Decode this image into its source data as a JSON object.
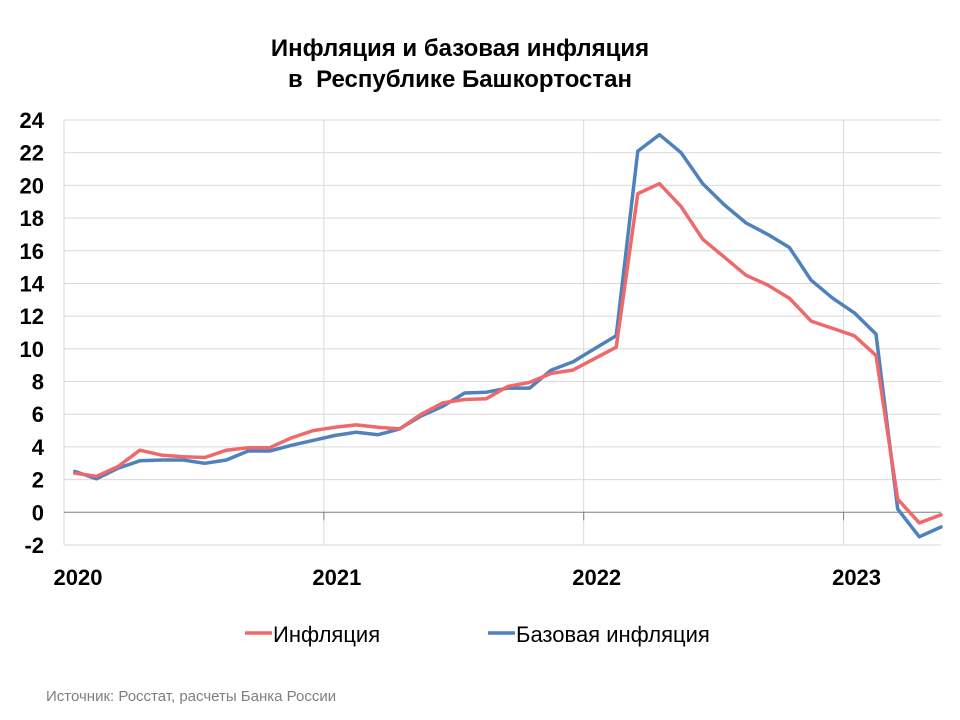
{
  "chart_data": {
    "type": "line",
    "title_lines": [
      "Инфляция и базовая инфляция",
      "в  Республике Башкортостан"
    ],
    "ylim": [
      -2,
      24
    ],
    "yticks": [
      -2,
      0,
      2,
      4,
      6,
      8,
      10,
      12,
      14,
      16,
      18,
      20,
      22,
      24
    ],
    "xlim": [
      0,
      40.5
    ],
    "xticks": [
      {
        "label": "2020",
        "pos": 0
      },
      {
        "label": "2021",
        "pos": 12
      },
      {
        "label": "2022",
        "pos": 24
      },
      {
        "label": "2023",
        "pos": 36
      }
    ],
    "grid": true,
    "legend_position": "bottom",
    "series": [
      {
        "name": "Инфляция",
        "color": "#f0696a",
        "x_start": 0.5,
        "values": [
          2.4,
          2.2,
          2.8,
          3.8,
          3.5,
          3.4,
          3.35,
          3.8,
          3.95,
          3.95,
          4.55,
          5.0,
          5.2,
          5.35,
          5.2,
          5.1,
          6.0,
          6.7,
          6.9,
          6.95,
          7.7,
          7.95,
          8.5,
          8.7,
          9.4,
          10.1,
          19.5,
          20.1,
          18.7,
          16.7,
          15.6,
          14.5,
          13.9,
          13.1,
          11.7,
          11.25,
          10.8,
          9.6,
          0.8,
          -0.65,
          -0.15
        ]
      },
      {
        "name": "Базовая инфляция",
        "color": "#4f81bd",
        "x_start": 0.5,
        "values": [
          2.5,
          2.05,
          2.7,
          3.15,
          3.2,
          3.2,
          3.0,
          3.2,
          3.75,
          3.75,
          4.1,
          4.4,
          4.7,
          4.9,
          4.75,
          5.1,
          5.9,
          6.5,
          7.3,
          7.35,
          7.6,
          7.6,
          8.7,
          9.2,
          10.0,
          10.8,
          22.1,
          23.1,
          22.0,
          20.1,
          18.8,
          17.7,
          17.0,
          16.2,
          14.2,
          13.1,
          12.2,
          10.9,
          0.2,
          -1.5,
          -0.9
        ]
      }
    ]
  },
  "source": "Источник: Росстат, расчеты Банка России"
}
